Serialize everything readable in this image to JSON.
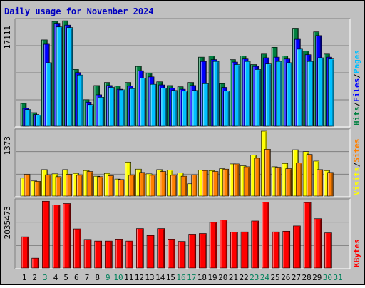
{
  "chart_data": {
    "title": "Daily usage for November 2024",
    "type": "bar",
    "days": [
      "1",
      "2",
      "3",
      "4",
      "5",
      "6",
      "7",
      "8",
      "9",
      "10",
      "11",
      "12",
      "13",
      "14",
      "15",
      "16",
      "17",
      "18",
      "19",
      "20",
      "21",
      "22",
      "23",
      "24",
      "25",
      "26",
      "27",
      "28",
      "29",
      "30",
      "31"
    ],
    "weekend_days": [
      "3",
      "9",
      "10",
      "16",
      "17",
      "23",
      "24",
      "30",
      "31"
    ],
    "panels": [
      {
        "id": "hits-files-pages",
        "max_label": "17111",
        "ylim": [
          0,
          17111
        ],
        "legend": [
          {
            "name": "Pages",
            "color": "#00c0ff"
          },
          {
            "name": "Files",
            "color": "#0000ff"
          },
          {
            "name": "Hits",
            "color": "#008040"
          }
        ],
        "legend_separator": "/",
        "series": [
          {
            "name": "Hits",
            "color": "#008040",
            "values": [
              3700,
              2200,
              14000,
              17000,
              17100,
              9200,
              4300,
              6600,
              7100,
              6500,
              7100,
              9700,
              8600,
              7200,
              6600,
              6400,
              7100,
              11200,
              11400,
              6900,
              10800,
              11400,
              10000,
              11700,
              12800,
              11400,
              15900,
              12200,
              15300,
              11700,
              0
            ]
          },
          {
            "name": "Files",
            "color": "#0000ff",
            "values": [
              2900,
              1900,
              13300,
              16700,
              16400,
              8700,
              3900,
              5100,
              6600,
              6000,
              6500,
              9000,
              8000,
              6700,
              6200,
              6000,
              6600,
              10500,
              10800,
              6300,
              10400,
              10900,
              9700,
              11100,
              11200,
              10900,
              14100,
              11600,
              14700,
              11200,
              0
            ]
          },
          {
            "name": "Pages",
            "color": "#00c0ff",
            "values": [
              2700,
              1800,
              10300,
              16100,
              16000,
              8300,
              3500,
              4700,
              6300,
              5900,
              6100,
              7800,
              6800,
              6200,
              5800,
              5700,
              5800,
              6900,
              10500,
              5700,
              10000,
              10500,
              9200,
              10100,
              10500,
              10300,
              12500,
              10500,
              11100,
              10900,
              0
            ]
          }
        ]
      },
      {
        "id": "visits-sites",
        "max_label": "1373",
        "ylim": [
          0,
          1373
        ],
        "legend": [
          {
            "name": "Sites",
            "color": "#ff8000"
          },
          {
            "name": "Visits",
            "color": "#ffff00"
          }
        ],
        "legend_separator": "/",
        "series": [
          {
            "name": "Visits",
            "color": "#ffff00",
            "values": [
              380,
              320,
              560,
              470,
              560,
              480,
              540,
              420,
              480,
              360,
              720,
              570,
              470,
              560,
              550,
              490,
              260,
              550,
              540,
              580,
              680,
              640,
              870,
              1373,
              620,
              690,
              980,
              940,
              740,
              540,
              0
            ]
          },
          {
            "name": "Sites",
            "color": "#ff8000",
            "values": [
              460,
              310,
              450,
              410,
              460,
              440,
              520,
              410,
              430,
              350,
              440,
              500,
              440,
              520,
              440,
              420,
              450,
              540,
              520,
              570,
              680,
              620,
              800,
              990,
              610,
              580,
              700,
              880,
              560,
              500,
              0
            ]
          }
        ]
      },
      {
        "id": "kbytes",
        "max_label": "2035473",
        "ylim": [
          0,
          2035473
        ],
        "legend": [
          {
            "name": "KBytes",
            "color": "#ff0000"
          }
        ],
        "legend_separator": "",
        "series": [
          {
            "name": "KBytes",
            "color": "#ff0000",
            "values": [
              950000,
              300000,
              2030000,
              1920000,
              1960000,
              1190000,
              870000,
              820000,
              820000,
              880000,
              820000,
              1200000,
              990000,
              1200000,
              880000,
              810000,
              1030000,
              1050000,
              1390000,
              1460000,
              1090000,
              1100000,
              1430000,
              2000000,
              1100000,
              1120000,
              1280000,
              1990000,
              1500000,
              1070000,
              0
            ]
          }
        ]
      }
    ]
  }
}
